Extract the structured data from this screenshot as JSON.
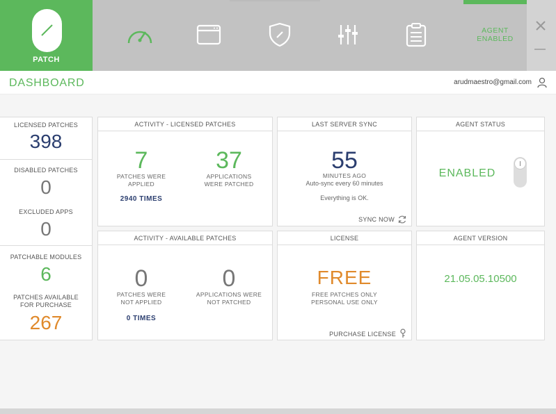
{
  "brand": {
    "label": "PATCH"
  },
  "nav": [
    {
      "icon": "speedometer-icon"
    },
    {
      "icon": "browser-window-icon"
    },
    {
      "icon": "shield-icon"
    },
    {
      "icon": "sliders-icon"
    },
    {
      "icon": "clipboard-icon"
    }
  ],
  "agent": {
    "line1": "AGENT",
    "line2": "ENABLED"
  },
  "header": {
    "title": "DASHBOARD",
    "email": "arudmaestro@gmail.com"
  },
  "left": {
    "licensed_label": "LICENSED PATCHES",
    "licensed_value": "398",
    "disabled_label": "DISABLED PATCHES",
    "disabled_value": "0",
    "excluded_label": "EXCLUDED APPS",
    "excluded_value": "0",
    "modules_label": "PATCHABLE MODULES",
    "modules_value": "6",
    "purchase_label1": "PATCHES AVAILABLE",
    "purchase_label2": "FOR PURCHASE",
    "purchase_value": "267"
  },
  "activity_licensed": {
    "title": "ACTIVITY - LICENSED PATCHES",
    "applied_value": "7",
    "applied_l1": "PATCHES WERE",
    "applied_l2": "APPLIED",
    "apps_value": "37",
    "apps_l1": "APPLICATIONS",
    "apps_l2": "WERE PATCHED",
    "times": "2940 TIMES"
  },
  "sync": {
    "title": "LAST SERVER SYNC",
    "value": "55",
    "unit": "MINUTES AGO",
    "auto": "Auto-sync every 60 minutes",
    "status": "Everything is OK.",
    "sync_now": "SYNC NOW"
  },
  "agent_status": {
    "title": "AGENT STATUS",
    "value": "ENABLED"
  },
  "activity_available": {
    "title": "ACTIVITY - AVAILABLE PATCHES",
    "not_applied_value": "0",
    "na_l1": "PATCHES WERE",
    "na_l2": "NOT APPLIED",
    "not_patched_value": "0",
    "np_l1": "APPLICATIONS WERE",
    "np_l2": "NOT PATCHED",
    "times": "0 TIMES"
  },
  "license": {
    "title": "LICENSE",
    "value": "FREE",
    "l1": "FREE PATCHES ONLY",
    "l2": "PERSONAL USE ONLY",
    "purchase": "PURCHASE LICENSE"
  },
  "agent_version": {
    "title": "AGENT VERSION",
    "value": "21.05.05.10500"
  },
  "colors": {
    "green": "#5cb85c",
    "navy": "#2b3e6f",
    "orange": "#e08a2c",
    "topbar": "#c2c2c2"
  }
}
